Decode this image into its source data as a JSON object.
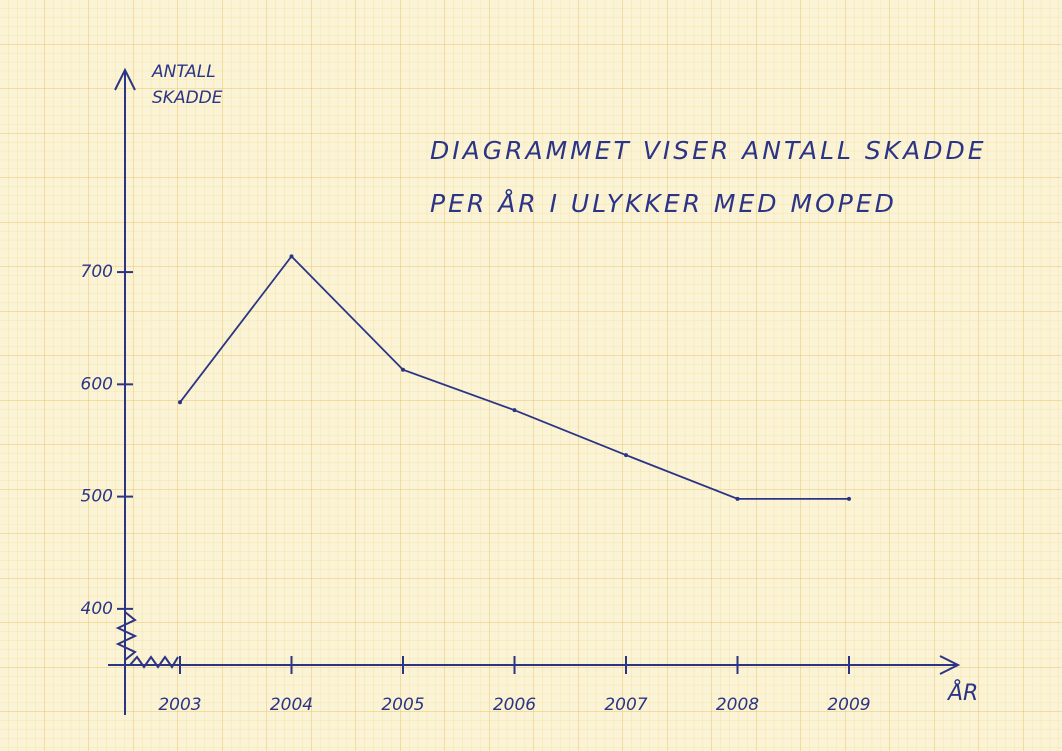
{
  "chart_data": {
    "type": "line",
    "title_lines": [
      "DIAGRAMMET VISER ANTALL SKADDE",
      "PER ÅR I ULYKKER MED MOPED"
    ],
    "y_label_lines": [
      "ANTALL",
      "SKADDE"
    ],
    "x_label": "ÅR",
    "categories": [
      "2003",
      "2004",
      "2005",
      "2006",
      "2007",
      "2008",
      "2009"
    ],
    "series": [
      {
        "name": "Antall skadde",
        "color": "#2c3585",
        "values": [
          584,
          714,
          613,
          577,
          537,
          498,
          498
        ]
      }
    ],
    "ylim": [
      350,
      880
    ],
    "yticks": [
      400,
      500,
      600,
      700
    ]
  }
}
